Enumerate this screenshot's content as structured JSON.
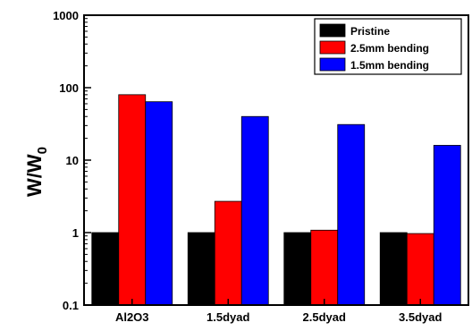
{
  "chart_data": {
    "type": "bar",
    "categories": [
      "Al2O3",
      "1.5dyad",
      "2.5dyad",
      "3.5dyad"
    ],
    "series": [
      {
        "name": "Pristine",
        "color": "#000000",
        "values": [
          1,
          1,
          1,
          1
        ]
      },
      {
        "name": "2.5mm bending",
        "color": "#ff0000",
        "values": [
          80,
          2.7,
          1.08,
          0.97
        ]
      },
      {
        "name": "1.5mm bending",
        "color": "#0000ff",
        "values": [
          64,
          40,
          31,
          16
        ]
      }
    ],
    "ylabel": {
      "main": "W/W",
      "sub": "0"
    },
    "yscale": "log",
    "ylim": [
      0.1,
      1000
    ],
    "yticks": [
      "0.1",
      "1",
      "10",
      "100",
      "1000"
    ],
    "grid": false,
    "legend_position": "top-right"
  }
}
